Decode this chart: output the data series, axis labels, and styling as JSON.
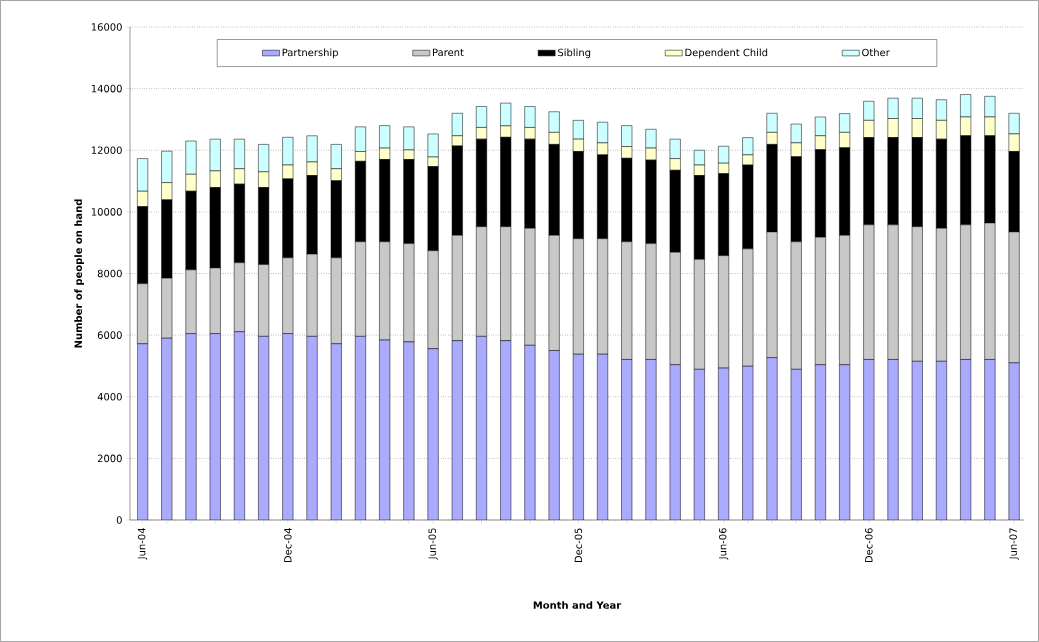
{
  "chart_data": {
    "type": "bar",
    "stacked": true,
    "xlabel": "Month and Year",
    "ylabel": "Number of people on hand",
    "categories": [
      "Jun-04",
      null,
      null,
      null,
      null,
      null,
      "Dec-04",
      null,
      null,
      null,
      null,
      null,
      "Jun-05",
      null,
      null,
      null,
      null,
      null,
      "Dec-05",
      null,
      null,
      null,
      null,
      null,
      "Jun-06",
      null,
      null,
      null,
      null,
      null,
      "Dec-06",
      null,
      null,
      null,
      null,
      null,
      "Jun-07"
    ],
    "series": [
      {
        "name": "Partnership",
        "color": "#aaaaff",
        "values": [
          5720,
          5900,
          6050,
          6050,
          6110,
          5960,
          6050,
          5960,
          5720,
          5960,
          5840,
          5780,
          5560,
          5820,
          5960,
          5820,
          5670,
          5500,
          5380,
          5380,
          5210,
          5210,
          5040,
          4890,
          4930,
          4990,
          5270,
          4890,
          5040,
          5040,
          5210,
          5210,
          5150,
          5150,
          5210,
          5210,
          5100
        ]
      },
      {
        "name": "Parent",
        "color": "#c8c8c8",
        "values": [
          1950,
          1950,
          2070,
          2130,
          2240,
          2330,
          2460,
          2670,
          2790,
          3070,
          3190,
          3190,
          3180,
          3420,
          3560,
          3700,
          3800,
          3740,
          3750,
          3750,
          3820,
          3760,
          3650,
          3570,
          3650,
          3810,
          4080,
          4140,
          4140,
          4200,
          4370,
          4370,
          4370,
          4320,
          4370,
          4430,
          4250
        ]
      },
      {
        "name": "Sibling",
        "color": "#000000",
        "values": [
          2500,
          2540,
          2550,
          2610,
          2550,
          2500,
          2560,
          2550,
          2500,
          2610,
          2670,
          2730,
          2730,
          2900,
          2840,
          2900,
          2890,
          2950,
          2830,
          2720,
          2710,
          2710,
          2660,
          2720,
          2660,
          2720,
          2840,
          2760,
          2840,
          2840,
          2830,
          2830,
          2890,
          2890,
          2890,
          2830,
          2610
        ]
      },
      {
        "name": "Dependent Child",
        "color": "#ffffcc",
        "values": [
          500,
          560,
          550,
          540,
          500,
          510,
          450,
          440,
          390,
          320,
          370,
          310,
          310,
          330,
          380,
          370,
          380,
          390,
          400,
          390,
          380,
          390,
          380,
          340,
          340,
          330,
          390,
          450,
          450,
          500,
          560,
          620,
          620,
          610,
          610,
          610,
          570
        ]
      },
      {
        "name": "Other",
        "color": "#ccffff",
        "values": [
          1060,
          1020,
          1080,
          1030,
          960,
          890,
          900,
          850,
          790,
          800,
          730,
          750,
          750,
          730,
          680,
          740,
          680,
          670,
          610,
          670,
          680,
          610,
          630,
          480,
          550,
          560,
          620,
          610,
          610,
          610,
          620,
          660,
          660,
          670,
          730,
          670,
          670
        ]
      }
    ],
    "ylim": [
      0,
      16000
    ],
    "yticks": [
      0,
      2000,
      4000,
      6000,
      8000,
      10000,
      12000,
      14000,
      16000
    ],
    "grid": "y",
    "legend": "top"
  }
}
